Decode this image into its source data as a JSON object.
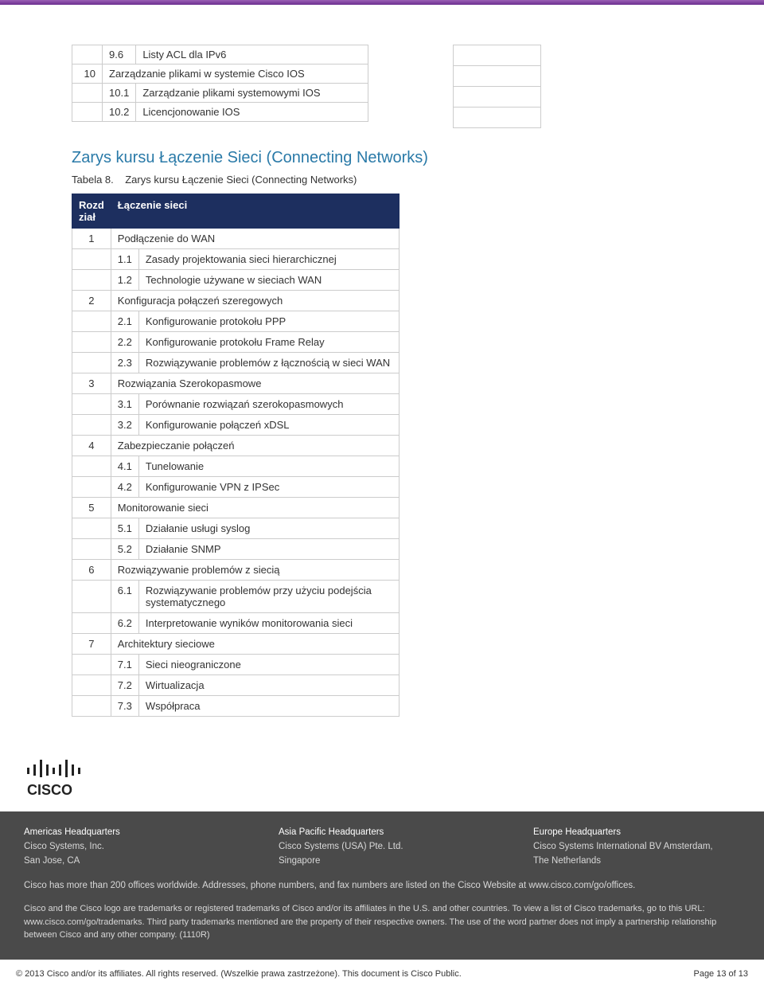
{
  "colors": {
    "top_gradient_from": "#9b5fb5",
    "top_gradient_to": "#6b2e8f",
    "section_title": "#2a7aa8",
    "table_header_bg": "#1d2f5f",
    "table_header_text": "#ffffff",
    "border": "#cccccc",
    "footer_bg": "#4a4a4a",
    "footer_text": "#d8d8d8",
    "body_text": "#333333"
  },
  "first_table": {
    "rows": [
      {
        "num": "",
        "sub": "9.6",
        "text": "Listy ACL dla IPv6"
      },
      {
        "num": "10",
        "sub": "",
        "text": "Zarządzanie plikami w systemie Cisco IOS"
      },
      {
        "num": "",
        "sub": "10.1",
        "text": "Zarządzanie plikami systemowymi IOS"
      },
      {
        "num": "",
        "sub": "10.2",
        "text": "Licencjonowanie IOS"
      }
    ]
  },
  "section_title": "Zarys kursu Łączenie Sieci (Connecting Networks)",
  "table_caption_prefix": "Tabela 8.",
  "table_caption_text": "Zarys kursu Łączenie Sieci (Connecting Networks)",
  "main_table": {
    "header_num": "Rozd ział",
    "header_text": "Łączenie sieci",
    "rows": [
      {
        "num": "1",
        "sub": "",
        "text": "Podłączenie do WAN"
      },
      {
        "num": "",
        "sub": "1.1",
        "text": "Zasady projektowania sieci hierarchicznej"
      },
      {
        "num": "",
        "sub": "1.2",
        "text": "Technologie używane w sieciach WAN"
      },
      {
        "num": "2",
        "sub": "",
        "text": "Konfiguracja połączeń szeregowych"
      },
      {
        "num": "",
        "sub": "2.1",
        "text": "Konfigurowanie protokołu PPP"
      },
      {
        "num": "",
        "sub": "2.2",
        "text": "Konfigurowanie protokołu Frame Relay"
      },
      {
        "num": "",
        "sub": "2.3",
        "text": "Rozwiązywanie problemów z łącznością w sieci WAN"
      },
      {
        "num": "3",
        "sub": "",
        "text": "Rozwiązania Szerokopasmowe"
      },
      {
        "num": "",
        "sub": "3.1",
        "text": "Porównanie rozwiązań szerokopasmowych"
      },
      {
        "num": "",
        "sub": "3.2",
        "text": "Konfigurowanie połączeń xDSL"
      },
      {
        "num": "4",
        "sub": "",
        "text": "Zabezpieczanie połączeń"
      },
      {
        "num": "",
        "sub": "4.1",
        "text": "Tunelowanie"
      },
      {
        "num": "",
        "sub": "4.2",
        "text": "Konfigurowanie VPN z IPSec"
      },
      {
        "num": "5",
        "sub": "",
        "text": "Monitorowanie sieci"
      },
      {
        "num": "",
        "sub": "5.1",
        "text": "Działanie usługi syslog"
      },
      {
        "num": "",
        "sub": "5.2",
        "text": "Działanie SNMP"
      },
      {
        "num": "6",
        "sub": "",
        "text": "Rozwiązywanie problemów z siecią"
      },
      {
        "num": "",
        "sub": "6.1",
        "text": "Rozwiązywanie problemów przy użyciu podejścia systematycznego"
      },
      {
        "num": "",
        "sub": "6.2",
        "text": "Interpretowanie wyników monitorowania sieci"
      },
      {
        "num": "7",
        "sub": "",
        "text": "Architektury sieciowe"
      },
      {
        "num": "",
        "sub": "7.1",
        "text": "Sieci nieograniczone"
      },
      {
        "num": "",
        "sub": "7.2",
        "text": "Wirtualizacja"
      },
      {
        "num": "",
        "sub": "7.3",
        "text": "Współpraca"
      }
    ]
  },
  "logo_text": "CISCO",
  "footer": {
    "hq": [
      {
        "title": "Americas Headquarters",
        "line1": "Cisco Systems, Inc.",
        "line2": "San Jose, CA"
      },
      {
        "title": "Asia Pacific Headquarters",
        "line1": "Cisco Systems (USA) Pte. Ltd.",
        "line2": "Singapore"
      },
      {
        "title": "Europe Headquarters",
        "line1": "Cisco Systems International BV Amsterdam,",
        "line2": "The Netherlands"
      }
    ],
    "offices_text": "Cisco has more than 200 offices worldwide. Addresses, phone numbers, and fax numbers are listed on the Cisco Website at www.cisco.com/go/offices.",
    "trademark_text": "Cisco and the Cisco logo are trademarks or registered trademarks of Cisco and/or its affiliates in the U.S. and other countries. To view a list of Cisco trademarks, go to this URL: www.cisco.com/go/trademarks. Third party trademarks mentioned are the property of their respective owners. The use of the word partner does not imply a partnership relationship between Cisco and any other company. (1110R)"
  },
  "copyright": "© 2013 Cisco and/or its affiliates. All rights reserved. (Wszelkie prawa zastrzeżone). This document is Cisco Public.",
  "page_label": "Page 13 of 13"
}
